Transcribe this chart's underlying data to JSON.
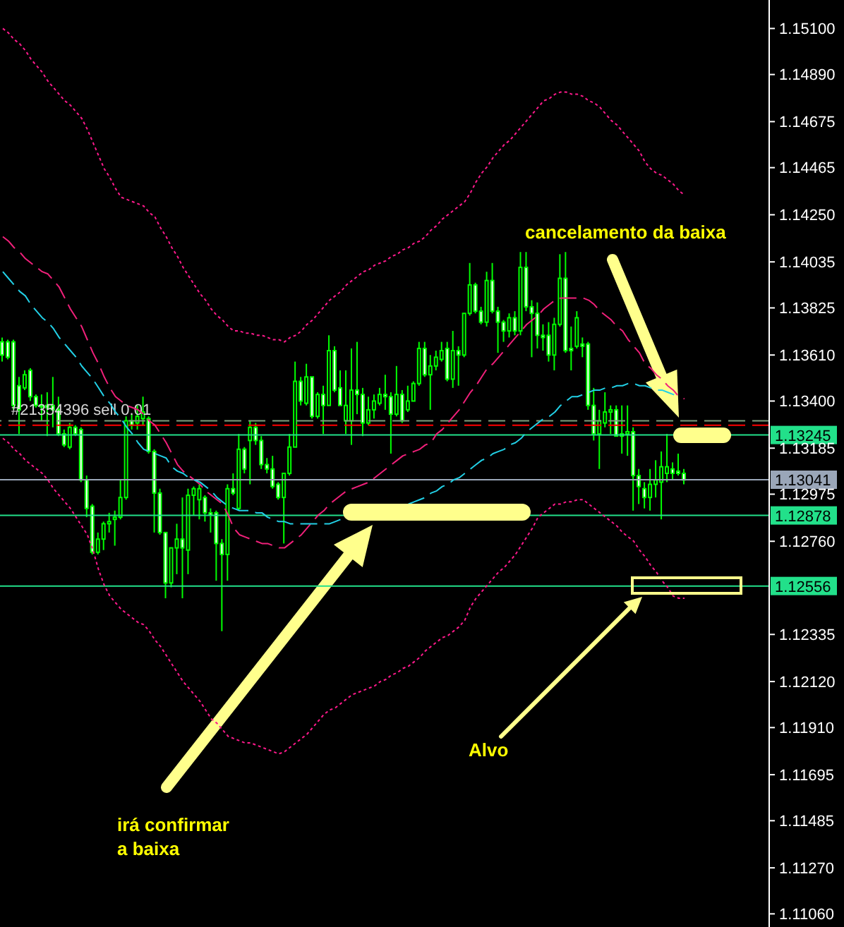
{
  "chart_data": {
    "type": "candlestick",
    "color": "#00ff00",
    "tick_labels": "y",
    "categories": [
      null,
      null,
      null,
      null,
      null,
      null,
      null,
      null,
      null,
      null,
      null,
      null,
      null,
      null,
      null,
      null,
      null,
      null,
      null,
      null,
      null,
      null,
      null,
      null,
      null,
      null,
      null,
      null,
      null,
      null,
      null,
      null,
      null,
      null,
      null,
      null,
      null,
      null,
      null,
      null,
      null,
      null,
      null,
      null,
      null,
      null,
      null,
      null,
      null,
      null,
      null,
      null,
      null,
      null,
      null,
      null,
      null,
      null,
      null,
      null,
      null,
      null,
      null,
      null,
      null,
      null,
      null,
      null,
      null,
      null,
      null,
      null,
      null,
      null,
      null,
      null,
      null,
      null,
      null,
      null,
      null,
      null,
      null,
      null,
      null,
      null,
      null,
      null,
      null,
      null,
      null,
      null,
      null,
      null,
      null,
      null,
      null,
      null,
      null,
      null,
      null,
      null,
      null,
      null,
      null,
      null,
      null,
      null,
      null,
      null,
      null,
      null,
      null,
      null,
      null,
      null,
      null,
      null,
      null,
      null,
      null,
      null
    ],
    "ohlc": [
      [
        1.1367,
        1.1369,
        1.1358,
        1.1361
      ],
      [
        1.1367,
        1.1368,
        1.1359,
        1.136
      ],
      [
        1.1367,
        1.1368,
        1.1336,
        1.1338
      ],
      [
        1.1347,
        1.1351,
        1.1325,
        1.1336
      ],
      [
        1.1346,
        1.1354,
        1.1345,
        1.1352
      ],
      [
        1.1354,
        1.1355,
        1.134,
        1.1342
      ],
      [
        1.1342,
        1.1343,
        1.1337,
        1.1338
      ],
      [
        1.1338,
        1.1343,
        1.1331,
        1.1338
      ],
      [
        1.1338,
        1.1344,
        1.1324,
        1.1337
      ],
      [
        1.1338,
        1.1351,
        1.1328,
        1.1336
      ],
      [
        1.1336,
        1.1342,
        1.1324,
        1.1325
      ],
      [
        1.1325,
        1.1327,
        1.1319,
        1.132
      ],
      [
        1.1319,
        1.133,
        1.1318,
        1.1328
      ],
      [
        1.1328,
        1.1329,
        1.1324,
        1.1325
      ],
      [
        1.1327,
        1.1328,
        1.1303,
        1.1304
      ],
      [
        1.1304,
        1.1306,
        1.1287,
        1.1291
      ],
      [
        1.1292,
        1.1293,
        1.127,
        1.1271
      ],
      [
        1.1271,
        1.128,
        1.127,
        1.1277
      ],
      [
        1.1277,
        1.1285,
        1.1272,
        1.1284
      ],
      [
        1.1284,
        1.1289,
        1.128,
        1.1285
      ],
      [
        1.1286,
        1.129,
        1.1274,
        1.1287
      ],
      [
        1.1287,
        1.1304,
        1.1286,
        1.1296
      ],
      [
        1.1296,
        1.1333,
        1.1295,
        1.1331
      ],
      [
        1.1331,
        1.1334,
        1.1327,
        1.1329
      ],
      [
        1.133,
        1.1338,
        1.1327,
        1.1333
      ],
      [
        1.1332,
        1.1342,
        1.1329,
        1.1335
      ],
      [
        1.1332,
        1.1333,
        1.1316,
        1.1317
      ],
      [
        1.1317,
        1.1318,
        1.128,
        1.1298
      ],
      [
        1.1298,
        1.13,
        1.1279,
        1.128
      ],
      [
        1.128,
        1.128,
        1.125,
        1.1257
      ],
      [
        1.1257,
        1.1273,
        1.1255,
        1.1273
      ],
      [
        1.1273,
        1.1284,
        1.1261,
        1.1277
      ],
      [
        1.1277,
        1.1296,
        1.125,
        1.1273
      ],
      [
        1.1272,
        1.13,
        1.1261,
        1.1297
      ],
      [
        1.1297,
        1.1301,
        1.1288,
        1.13
      ],
      [
        1.1295,
        1.1302,
        1.1286,
        1.13
      ],
      [
        1.1296,
        1.1297,
        1.1285,
        1.1289
      ],
      [
        1.1289,
        1.1291,
        1.128,
        1.1288
      ],
      [
        1.1289,
        1.129,
        1.1258,
        1.1275
      ],
      [
        1.1275,
        1.1277,
        1.1235,
        1.127
      ],
      [
        1.127,
        1.1302,
        1.1258,
        1.13
      ],
      [
        1.13,
        1.1307,
        1.1297,
        1.1298
      ],
      [
        1.1291,
        1.1325,
        1.129,
        1.1318
      ],
      [
        1.1318,
        1.1319,
        1.1307,
        1.1309
      ],
      [
        1.1322,
        1.1331,
        1.1302,
        1.1328
      ],
      [
        1.1328,
        1.133,
        1.132,
        1.1322
      ],
      [
        1.1322,
        1.1324,
        1.1309,
        1.1311
      ],
      [
        1.1311,
        1.1314,
        1.1307,
        1.1309
      ],
      [
        1.1309,
        1.1315,
        1.13,
        1.1301
      ],
      [
        1.1302,
        1.1303,
        1.1295,
        1.1296
      ],
      [
        1.1296,
        1.1307,
        1.1275,
        1.1307
      ],
      [
        1.1307,
        1.1325,
        1.1306,
        1.1319
      ],
      [
        1.1319,
        1.1358,
        1.1319,
        1.1349
      ],
      [
        1.1349,
        1.1351,
        1.1338,
        1.134
      ],
      [
        1.1339,
        1.1357,
        1.1338,
        1.1351
      ],
      [
        1.1351,
        1.1351,
        1.1332,
        1.1333
      ],
      [
        1.1333,
        1.1344,
        1.1332,
        1.1343
      ],
      [
        1.1343,
        1.1347,
        1.1325,
        1.1338
      ],
      [
        1.1338,
        1.137,
        1.1338,
        1.1363
      ],
      [
        1.1363,
        1.1365,
        1.1344,
        1.1345
      ],
      [
        1.1346,
        1.1354,
        1.1338,
        1.1338
      ],
      [
        1.1331,
        1.1354,
        1.1325,
        1.1338
      ],
      [
        1.1331,
        1.1364,
        1.132,
        1.1345
      ],
      [
        1.1345,
        1.1367,
        1.1334,
        1.1343
      ],
      [
        1.1343,
        1.1346,
        1.1324,
        1.133
      ],
      [
        1.133,
        1.1342,
        1.1329,
        1.1336
      ],
      [
        1.1336,
        1.1343,
        1.1332,
        1.134
      ],
      [
        1.1339,
        1.1346,
        1.1338,
        1.1343
      ],
      [
        1.1343,
        1.1352,
        1.1336,
        1.1342
      ],
      [
        1.1342,
        1.1344,
        1.1316,
        1.1334
      ],
      [
        1.1334,
        1.1356,
        1.1333,
        1.1343
      ],
      [
        1.1343,
        1.1345,
        1.133,
        1.1331
      ],
      [
        1.1336,
        1.1347,
        1.1335,
        1.134
      ],
      [
        1.134,
        1.1349,
        1.134,
        1.1348
      ],
      [
        1.1348,
        1.1367,
        1.1347,
        1.1364
      ],
      [
        1.1364,
        1.1367,
        1.1351,
        1.1352
      ],
      [
        1.1352,
        1.1361,
        1.1336,
        1.1356
      ],
      [
        1.1356,
        1.1363,
        1.1354,
        1.136
      ],
      [
        1.1359,
        1.1367,
        1.1358,
        1.1363
      ],
      [
        1.1364,
        1.1367,
        1.1349,
        1.135
      ],
      [
        1.135,
        1.1372,
        1.1346,
        1.1363
      ],
      [
        1.1363,
        1.1365,
        1.1347,
        1.1361
      ],
      [
        1.1361,
        1.138,
        1.136,
        1.138
      ],
      [
        1.138,
        1.1403,
        1.1379,
        1.1393
      ],
      [
        1.1393,
        1.1394,
        1.138,
        1.1381
      ],
      [
        1.1381,
        1.1383,
        1.1375,
        1.1376
      ],
      [
        1.1376,
        1.1399,
        1.1374,
        1.1395
      ],
      [
        1.1395,
        1.1403,
        1.138,
        1.1381
      ],
      [
        1.1381,
        1.1383,
        1.1362,
        1.1376
      ],
      [
        1.1376,
        1.1377,
        1.1367,
        1.1372
      ],
      [
        1.1372,
        1.138,
        1.1369,
        1.1378
      ],
      [
        1.1378,
        1.1381,
        1.137,
        1.1372
      ],
      [
        1.1372,
        1.1408,
        1.137,
        1.1401
      ],
      [
        1.1401,
        1.1408,
        1.1381,
        1.1383
      ],
      [
        1.1383,
        1.1386,
        1.136,
        1.138
      ],
      [
        1.138,
        1.1385,
        1.1364,
        1.137
      ],
      [
        1.137,
        1.1375,
        1.1363,
        1.1369
      ],
      [
        1.137,
        1.1376,
        1.1358,
        1.1361
      ],
      [
        1.1361,
        1.1378,
        1.1354,
        1.1375
      ],
      [
        1.1375,
        1.1407,
        1.1374,
        1.1396
      ],
      [
        1.1396,
        1.1408,
        1.1362,
        1.1363
      ],
      [
        1.1364,
        1.1374,
        1.1354,
        1.1363
      ],
      [
        1.1365,
        1.1381,
        1.1364,
        1.1378
      ],
      [
        1.1366,
        1.1369,
        1.136,
        1.1365
      ],
      [
        1.1366,
        1.1367,
        1.1336,
        1.1338
      ],
      [
        1.1338,
        1.1346,
        1.1322,
        1.1325
      ],
      [
        1.1325,
        1.1336,
        1.1309,
        1.1331
      ],
      [
        1.133,
        1.1344,
        1.1328,
        1.1335
      ],
      [
        1.1335,
        1.1338,
        1.1325,
        1.1336
      ],
      [
        1.1336,
        1.1338,
        1.1324,
        1.1324
      ],
      [
        1.1324,
        1.1338,
        1.1316,
        1.1325
      ],
      [
        1.1325,
        1.1338,
        1.1315,
        1.1326
      ],
      [
        1.1326,
        1.1328,
        1.129,
        1.1306
      ],
      [
        1.1306,
        1.1309,
        1.1293,
        1.1301
      ],
      [
        1.13,
        1.1303,
        1.1291,
        1.1296
      ],
      [
        1.1296,
        1.1309,
        1.129,
        1.1302
      ],
      [
        1.1302,
        1.1313,
        1.1296,
        1.1304
      ],
      [
        1.1303,
        1.1317,
        1.1286,
        1.131
      ],
      [
        1.1307,
        1.1325,
        1.1303,
        1.131
      ],
      [
        1.1309,
        1.1312,
        1.1304,
        1.1307
      ],
      [
        1.1308,
        1.1316,
        1.1306,
        1.1307
      ],
      [
        1.1307,
        1.1309,
        1.1302,
        1.1304
      ]
    ],
    "series": [
      {
        "type": "line",
        "color": "#ff1a8c",
        "line_style": "dotted",
        "values": [
          1.151,
          1.1508,
          1.1505,
          1.1503,
          1.15,
          1.1496,
          1.1493,
          1.149,
          1.1486,
          1.1483,
          1.148,
          1.1477,
          1.1475,
          1.1472,
          1.1469,
          1.1464,
          1.1458,
          1.1452,
          1.1446,
          1.1442,
          1.1437,
          1.1433,
          1.1432,
          1.1431,
          1.143,
          1.1429,
          1.1426,
          1.1424,
          1.1419,
          1.1415,
          1.141,
          1.1406,
          1.1401,
          1.1397,
          1.1393,
          1.1389,
          1.1386,
          1.1382,
          1.1379,
          1.1377,
          1.1374,
          1.1372,
          1.1372,
          1.1371,
          1.1371,
          1.137,
          1.137,
          1.1369,
          1.1368,
          1.1368,
          1.1367,
          1.1369,
          1.137,
          1.1372,
          1.1375,
          1.1377,
          1.138,
          1.1383,
          1.1386,
          1.1388,
          1.139,
          1.1393,
          1.1395,
          1.1397,
          1.1399,
          1.14,
          1.1402,
          1.1403,
          1.1404,
          1.1406,
          1.1407,
          1.1409,
          1.141,
          1.1412,
          1.1413,
          1.1415,
          1.1418,
          1.142,
          1.1423,
          1.1425,
          1.1427,
          1.1429,
          1.1431,
          1.1435,
          1.144,
          1.1444,
          1.1447,
          1.1451,
          1.1454,
          1.1457,
          1.1459,
          1.1462,
          1.1465,
          1.1468,
          1.1471,
          1.1474,
          1.1477,
          1.1478,
          1.148,
          1.1481,
          1.1481,
          1.148,
          1.148,
          1.1479,
          1.1477,
          1.1476,
          1.1474,
          1.1471,
          1.1468,
          1.1466,
          1.1463,
          1.146,
          1.1457,
          1.1454,
          1.1449,
          1.1446,
          1.1444,
          1.1443,
          1.1441,
          1.1439,
          1.1436,
          1.1434
        ]
      },
      {
        "type": "line",
        "color": "#ff1a8c",
        "line_style": "dotted",
        "values": [
          1.1323,
          1.1321,
          1.1318,
          1.1316,
          1.1313,
          1.1311,
          1.1309,
          1.1307,
          1.1304,
          1.13,
          1.1297,
          1.1294,
          1.1291,
          1.1287,
          1.1283,
          1.1279,
          1.1272,
          1.1263,
          1.1256,
          1.1251,
          1.1248,
          1.1245,
          1.1243,
          1.1241,
          1.1239,
          1.1238,
          1.1235,
          1.1231,
          1.1228,
          1.1224,
          1.122,
          1.1216,
          1.1212,
          1.1209,
          1.1206,
          1.1203,
          1.1199,
          1.1195,
          1.1193,
          1.119,
          1.1187,
          1.1186,
          1.1185,
          1.1184,
          1.1184,
          1.1183,
          1.1182,
          1.1181,
          1.118,
          1.1179,
          1.118,
          1.1182,
          1.1184,
          1.1186,
          1.1188,
          1.1191,
          1.1194,
          1.1197,
          1.1199,
          1.12,
          1.1202,
          1.1204,
          1.1206,
          1.1207,
          1.1208,
          1.1209,
          1.121,
          1.1212,
          1.1213,
          1.1215,
          1.1216,
          1.1218,
          1.1219,
          1.1221,
          1.1223,
          1.1226,
          1.1228,
          1.123,
          1.1232,
          1.1233,
          1.1235,
          1.1237,
          1.124,
          1.1246,
          1.125,
          1.1253,
          1.1256,
          1.1259,
          1.1262,
          1.1264,
          1.1267,
          1.127,
          1.1274,
          1.1278,
          1.1282,
          1.1287,
          1.1289,
          1.1291,
          1.1293,
          1.1293,
          1.1294,
          1.1294,
          1.1295,
          1.1295,
          1.1293,
          1.1291,
          1.1289,
          1.1287,
          1.1285,
          1.1283,
          1.128,
          1.1278,
          1.1276,
          1.1272,
          1.1269,
          1.1265,
          1.1262,
          1.1258,
          1.1255,
          1.1251,
          1.125,
          1.125
        ]
      },
      {
        "type": "line",
        "color": "#f0207a",
        "line_style": "dashed",
        "values": [
          1.1415,
          1.1413,
          1.141,
          1.1408,
          1.1405,
          1.1403,
          1.1401,
          1.1399,
          1.1398,
          1.1395,
          1.1392,
          1.1387,
          1.1382,
          1.1378,
          1.1374,
          1.1368,
          1.1362,
          1.1357,
          1.1351,
          1.1346,
          1.1342,
          1.134,
          1.1338,
          1.1337,
          1.1336,
          1.1334,
          1.1331,
          1.1329,
          1.1325,
          1.1321,
          1.1316,
          1.1311,
          1.1308,
          1.1306,
          1.1304,
          1.1302,
          1.1299,
          1.1297,
          1.1295,
          1.1293,
          1.1288,
          1.1282,
          1.1279,
          1.1278,
          1.1277,
          1.1276,
          1.1275,
          1.1275,
          1.1274,
          1.1273,
          1.1273,
          1.1275,
          1.1277,
          1.1279,
          1.1282,
          1.1285,
          1.1288,
          1.129,
          1.1293,
          1.1295,
          1.1297,
          1.1299,
          1.13,
          1.1301,
          1.1302,
          1.1303,
          1.1305,
          1.1307,
          1.1309,
          1.1311,
          1.1313,
          1.1315,
          1.1316,
          1.1317,
          1.1318,
          1.132,
          1.1321,
          1.1325,
          1.1327,
          1.133,
          1.1333,
          1.1336,
          1.134,
          1.1344,
          1.1347,
          1.1351,
          1.1355,
          1.1357,
          1.136,
          1.1363,
          1.1366,
          1.1369,
          1.1372,
          1.1375,
          1.1377,
          1.1379,
          1.1382,
          1.1384,
          1.1386,
          1.1387,
          1.1387,
          1.1387,
          1.1387,
          1.1387,
          1.1386,
          1.1384,
          1.1381,
          1.1379,
          1.1377,
          1.1374,
          1.1372,
          1.1368,
          1.1365,
          1.1362,
          1.1357,
          1.1355,
          1.1352,
          1.135,
          1.1347,
          1.1345,
          1.1342,
          1.1341
        ]
      },
      {
        "type": "line",
        "color": "#22d0e6",
        "line_style": "dashed",
        "values": [
          1.1399,
          1.1396,
          1.1393,
          1.139,
          1.1388,
          1.1384,
          1.1381,
          1.1378,
          1.1376,
          1.1373,
          1.1369,
          1.1366,
          1.1363,
          1.136,
          1.1356,
          1.1353,
          1.135,
          1.1346,
          1.1342,
          1.1339,
          1.1335,
          1.1332,
          1.1328,
          1.1325,
          1.1321,
          1.1318,
          1.1317,
          1.1316,
          1.1315,
          1.1314,
          1.131,
          1.1308,
          1.1307,
          1.1305,
          1.1304,
          1.1303,
          1.1301,
          1.1299,
          1.1296,
          1.1294,
          1.1292,
          1.1291,
          1.129,
          1.129,
          1.129,
          1.1289,
          1.1289,
          1.1287,
          1.1286,
          1.1285,
          1.1285,
          1.1284,
          1.1284,
          1.1284,
          1.1284,
          1.1284,
          1.1284,
          1.1284,
          1.1284,
          1.1285,
          1.1286,
          1.1286,
          null,
          null,
          null,
          null,
          null,
          null,
          null,
          null,
          null,
          null,
          1.1293,
          1.1294,
          1.1295,
          1.1296,
          1.1298,
          1.1299,
          1.1301,
          1.1302,
          1.1304,
          1.1305,
          1.1307,
          1.1309,
          1.1311,
          1.1313,
          1.1314,
          1.1316,
          1.1317,
          1.1318,
          1.132,
          1.1321,
          1.1323,
          1.1326,
          1.1328,
          1.133,
          1.1332,
          1.1333,
          1.1335,
          1.1338,
          1.134,
          1.1342,
          1.1342,
          1.1343,
          1.1344,
          1.1345,
          1.1345,
          1.1346,
          1.1346,
          1.1347,
          1.1347,
          1.1348,
          1.1348,
          1.1347,
          1.1347,
          1.1346,
          1.1345,
          1.1345,
          1.1344,
          1.1343,
          1.1342,
          null
        ]
      }
    ],
    "ylim": [
      1.11,
      1.1523
    ],
    "yticks": [
      {
        "value": 1.151,
        "label": "1.15100"
      },
      {
        "value": 1.1489,
        "label": "1.14890"
      },
      {
        "value": 1.14675,
        "label": "1.14675"
      },
      {
        "value": 1.14465,
        "label": "1.14465"
      },
      {
        "value": 1.1425,
        "label": "1.14250"
      },
      {
        "value": 1.14035,
        "label": "1.14035"
      },
      {
        "value": 1.13825,
        "label": "1.13825"
      },
      {
        "value": 1.1361,
        "label": "1.13610"
      },
      {
        "value": 1.134,
        "label": "1.13400"
      },
      {
        "value": 1.13185,
        "label": "1.13185"
      },
      {
        "value": 1.12975,
        "label": "1.12975"
      },
      {
        "value": 1.1276,
        "label": "1.12760"
      },
      {
        "value": 1.12335,
        "label": "1.12335"
      },
      {
        "value": 1.1212,
        "label": "1.12120"
      },
      {
        "value": 1.1191,
        "label": "1.11910"
      },
      {
        "value": 1.11695,
        "label": "1.11695"
      },
      {
        "value": 1.11485,
        "label": "1.11485"
      },
      {
        "value": 1.1127,
        "label": "1.11270"
      },
      {
        "value": 1.1106,
        "label": "1.11060"
      }
    ],
    "ref_lines": [
      {
        "axis": "y",
        "value": 1.1331,
        "label": "#21354396 sell 0.01",
        "color": "#7f9f7f",
        "line_style": "dashed"
      },
      {
        "axis": "y",
        "value": 1.1329,
        "color": "#ff0000",
        "line_style": "dashed"
      },
      {
        "axis": "y",
        "value": 1.13245,
        "label": "1.13245",
        "color": "#22e08a",
        "line_style": "solid"
      },
      {
        "axis": "y",
        "value": 1.13041,
        "label": "1.13041",
        "color": "#9aa6b8",
        "line_style": "solid"
      },
      {
        "axis": "y",
        "value": 1.12878,
        "label": "1.12878",
        "color": "#22e08a",
        "line_style": "solid"
      },
      {
        "axis": "y",
        "value": 1.12556,
        "label": "1.12556",
        "color": "#22e08a",
        "line_style": "solid"
      }
    ],
    "annotations": [
      "cancelamento da baixa",
      "irá confirmar a baixa",
      "Alvo"
    ]
  }
}
